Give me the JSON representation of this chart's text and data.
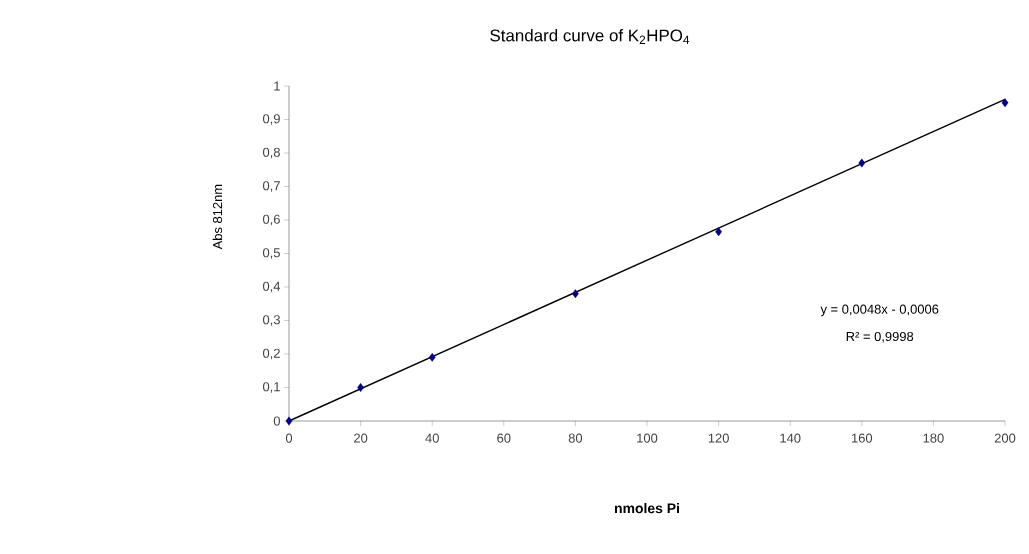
{
  "chart_data": {
    "type": "scatter",
    "title": "Standard curve of K$_{2}$HPO$_{4}$",
    "xlabel": "nmoles Pi",
    "ylabel": "Abs 812nm",
    "annotations": [
      "y = 0,0048x - 0,0006",
      "R² = 0,9998"
    ],
    "x": [
      0,
      20,
      40,
      80,
      120,
      160,
      200
    ],
    "series": [
      {
        "color": "#000080",
        "marker": "diamond",
        "values": [
          0,
          0.1,
          0.19,
          0.38,
          0.565,
          0.77,
          0.95
        ]
      },
      {
        "type": "line",
        "color": "#000000",
        "x": [
          0,
          200
        ],
        "values": [
          0,
          0.96
        ]
      }
    ],
    "xlim": [
      0,
      200
    ],
    "ylim": [
      0,
      1
    ],
    "xticks": [
      0,
      20,
      40,
      60,
      80,
      100,
      120,
      140,
      160,
      180,
      200
    ],
    "yticks": [
      0,
      {
        "value": 0.1,
        "label": "0,1"
      },
      {
        "value": 0.2,
        "label": "0,2"
      },
      {
        "value": 0.3,
        "label": "0,3"
      },
      {
        "value": 0.4,
        "label": "0,4"
      },
      {
        "value": 0.5,
        "label": "0,5"
      },
      {
        "value": 0.6,
        "label": "0,6"
      },
      {
        "value": 0.7,
        "label": "0,7"
      },
      {
        "value": 0.8,
        "label": "0,8"
      },
      {
        "value": 0.9,
        "label": "0,9"
      },
      1
    ]
  }
}
